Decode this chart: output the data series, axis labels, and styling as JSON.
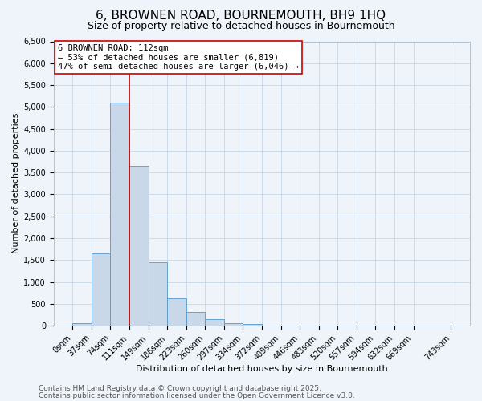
{
  "title": "6, BROWNEN ROAD, BOURNEMOUTH, BH9 1HQ",
  "subtitle": "Size of property relative to detached houses in Bournemouth",
  "bar_heights": [
    50,
    1650,
    5100,
    3650,
    1450,
    630,
    320,
    150,
    50,
    30,
    10,
    0,
    0,
    0,
    0,
    0,
    0,
    0,
    0
  ],
  "bin_edges": [
    0,
    37,
    74,
    111,
    149,
    186,
    223,
    260,
    297,
    334,
    372,
    409,
    446,
    483,
    520,
    557,
    594,
    632,
    669,
    743
  ],
  "bin_labels": [
    "0sqm",
    "37sqm",
    "74sqm",
    "111sqm",
    "149sqm",
    "186sqm",
    "223sqm",
    "260sqm",
    "297sqm",
    "334sqm",
    "372sqm",
    "409sqm",
    "446sqm",
    "483sqm",
    "520sqm",
    "557sqm",
    "594sqm",
    "632sqm",
    "669sqm",
    "743sqm"
  ],
  "bar_color": "#c8d8e8",
  "bar_edge_color": "#5599cc",
  "vline_x": 111,
  "vline_color": "#cc0000",
  "annotation_line1": "6 BROWNEN ROAD: 112sqm",
  "annotation_line2": "← 53% of detached houses are smaller (6,819)",
  "annotation_line3": "47% of semi-detached houses are larger (6,046) →",
  "annotation_box_color": "#ffffff",
  "annotation_box_edge_color": "#cc0000",
  "xlabel": "Distribution of detached houses by size in Bournemouth",
  "ylabel": "Number of detached properties",
  "ylim_max": 6500,
  "yticks": [
    0,
    500,
    1000,
    1500,
    2000,
    2500,
    3000,
    3500,
    4000,
    4500,
    5000,
    5500,
    6000,
    6500
  ],
  "grid_color": "#c0cfe0",
  "background_color": "#eef4fa",
  "footer_line1": "Contains HM Land Registry data © Crown copyright and database right 2025.",
  "footer_line2": "Contains public sector information licensed under the Open Government Licence v3.0.",
  "title_fontsize": 11,
  "subtitle_fontsize": 9,
  "xlabel_fontsize": 8,
  "ylabel_fontsize": 8,
  "tick_fontsize": 7,
  "annotation_fontsize": 7.5,
  "footer_fontsize": 6.5
}
